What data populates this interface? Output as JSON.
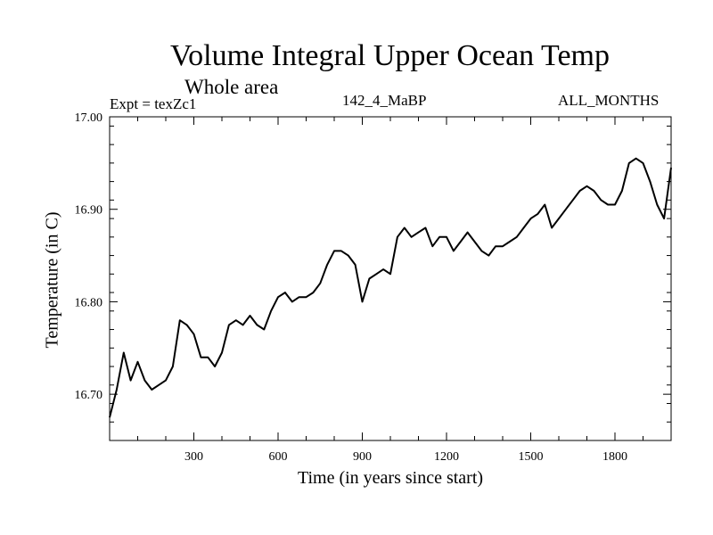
{
  "chart_data": {
    "type": "line",
    "title": "Volume Integral Upper Ocean Temp",
    "subtitle": "Whole area",
    "experiment": "Expt = texZc1",
    "run": "142_4_MaBP",
    "months": "ALL_MONTHS",
    "xlabel": "Time (in years since start)",
    "ylabel": "Temperature (in C)",
    "xlim": [
      0,
      2000
    ],
    "ylim": [
      16.65,
      17.0
    ],
    "x_ticks": [
      300,
      600,
      900,
      1200,
      1500,
      1800
    ],
    "x_tick_labels": [
      "300",
      "600",
      "900",
      "1200",
      "1500",
      "1800"
    ],
    "y_ticks": [
      16.7,
      16.8,
      16.9,
      17.0
    ],
    "y_tick_labels": [
      "16.70",
      "16.80",
      "16.90",
      "17.00"
    ],
    "grid": false,
    "series": [
      {
        "name": "Volume Integral Upper Ocean Temp",
        "color": "#000000",
        "x": [
          0,
          25,
          50,
          75,
          100,
          125,
          150,
          175,
          200,
          225,
          250,
          275,
          300,
          325,
          350,
          375,
          400,
          425,
          450,
          475,
          500,
          525,
          550,
          575,
          600,
          625,
          650,
          675,
          700,
          725,
          750,
          775,
          800,
          825,
          850,
          875,
          900,
          925,
          950,
          975,
          1000,
          1025,
          1050,
          1075,
          1100,
          1125,
          1150,
          1175,
          1200,
          1225,
          1250,
          1275,
          1300,
          1325,
          1350,
          1375,
          1400,
          1425,
          1450,
          1475,
          1500,
          1525,
          1550,
          1575,
          1600,
          1625,
          1650,
          1675,
          1700,
          1725,
          1750,
          1775,
          1800,
          1825,
          1850,
          1875,
          1900,
          1925,
          1950,
          1975,
          2000
        ],
        "values": [
          16.675,
          16.705,
          16.745,
          16.715,
          16.735,
          16.715,
          16.705,
          16.71,
          16.715,
          16.73,
          16.78,
          16.775,
          16.765,
          16.74,
          16.74,
          16.73,
          16.745,
          16.775,
          16.78,
          16.775,
          16.785,
          16.775,
          16.77,
          16.79,
          16.805,
          16.81,
          16.8,
          16.805,
          16.805,
          16.81,
          16.82,
          16.84,
          16.855,
          16.855,
          16.85,
          16.84,
          16.8,
          16.825,
          16.83,
          16.835,
          16.83,
          16.87,
          16.88,
          16.87,
          16.875,
          16.88,
          16.86,
          16.87,
          16.87,
          16.855,
          16.865,
          16.875,
          16.865,
          16.855,
          16.85,
          16.86,
          16.86,
          16.865,
          16.87,
          16.88,
          16.89,
          16.895,
          16.905,
          16.88,
          16.89,
          16.9,
          16.91,
          16.92,
          16.925,
          16.92,
          16.91,
          16.905,
          16.905,
          16.92,
          16.95,
          16.955,
          16.95,
          16.93,
          16.905,
          16.89,
          16.945
        ]
      }
    ]
  }
}
